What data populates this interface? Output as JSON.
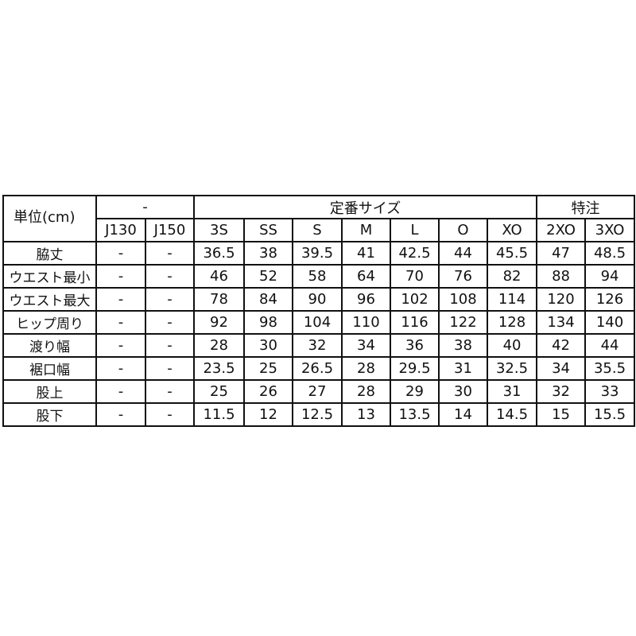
{
  "header": {
    "unit_label": "単位(cm)",
    "group_junior": "-",
    "group_standard": "定番サイズ",
    "group_special": "特注",
    "sizes": [
      "J130",
      "J150",
      "3S",
      "SS",
      "S",
      "M",
      "L",
      "O",
      "XO",
      "2XO",
      "3XO"
    ]
  },
  "rows": [
    {
      "label": "脇丈",
      "values": [
        "-",
        "-",
        "36.5",
        "38",
        "39.5",
        "41",
        "42.5",
        "44",
        "45.5",
        "47",
        "48.5"
      ]
    },
    {
      "label": "ウエスト最小",
      "values": [
        "-",
        "-",
        "46",
        "52",
        "58",
        "64",
        "70",
        "76",
        "82",
        "88",
        "94"
      ]
    },
    {
      "label": "ウエスト最大",
      "values": [
        "-",
        "-",
        "78",
        "84",
        "90",
        "96",
        "102",
        "108",
        "114",
        "120",
        "126"
      ]
    },
    {
      "label": "ヒップ周り",
      "values": [
        "-",
        "-",
        "92",
        "98",
        "104",
        "110",
        "116",
        "122",
        "128",
        "134",
        "140"
      ]
    },
    {
      "label": "渡り幅",
      "values": [
        "-",
        "-",
        "28",
        "30",
        "32",
        "34",
        "36",
        "38",
        "40",
        "42",
        "44"
      ]
    },
    {
      "label": "裾口幅",
      "values": [
        "-",
        "-",
        "23.5",
        "25",
        "26.5",
        "28",
        "29.5",
        "31",
        "32.5",
        "34",
        "35.5"
      ]
    },
    {
      "label": "股上",
      "values": [
        "-",
        "-",
        "25",
        "26",
        "27",
        "28",
        "29",
        "30",
        "31",
        "32",
        "33"
      ]
    },
    {
      "label": "股下",
      "values": [
        "-",
        "-",
        "11.5",
        "12",
        "12.5",
        "13",
        "13.5",
        "14",
        "14.5",
        "15",
        "15.5"
      ]
    }
  ]
}
